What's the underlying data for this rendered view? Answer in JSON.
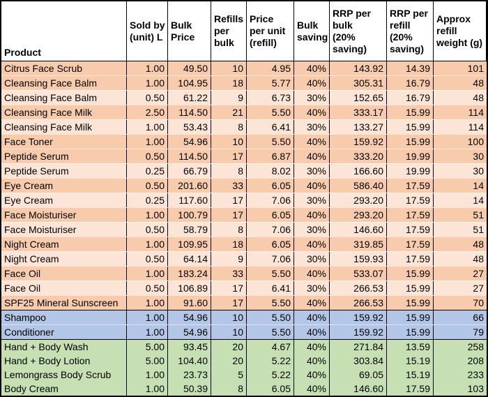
{
  "colors": {
    "border": "#000000",
    "header_bg": "#ffffff",
    "text": "#000000",
    "row_fills": {
      "face_dark": "#F8CBAD",
      "face_light": "#FCE4D6",
      "hair": "#B4C6E7",
      "body": "#C6E0B4"
    }
  },
  "table": {
    "columns": [
      {
        "id": "product",
        "label": "Product",
        "label_lines": [
          "Product"
        ]
      },
      {
        "id": "sold_by",
        "label": "Sold by (unit) L",
        "label_lines": [
          "Sold by",
          "(unit) L"
        ]
      },
      {
        "id": "bulk_price",
        "label": "Bulk Price",
        "label_lines": [
          "Bulk",
          "Price"
        ]
      },
      {
        "id": "refills",
        "label": "Refills per bulk",
        "label_lines": [
          "Refills",
          "per",
          "bulk"
        ]
      },
      {
        "id": "price_per_unit",
        "label": "Price per unit (refill)",
        "label_lines": [
          "Price",
          "per unit",
          "(refill)"
        ]
      },
      {
        "id": "bulk_saving",
        "label": "Bulk saving",
        "label_lines": [
          "Bulk",
          "saving"
        ]
      },
      {
        "id": "rrp_bulk",
        "label": "RRP per bulk (20% saving)",
        "label_lines": [
          "RRP per",
          "bulk",
          "(20%",
          "saving)"
        ]
      },
      {
        "id": "rrp_refill",
        "label": "RRP per refill (20% saving)",
        "label_lines": [
          "RRP per",
          "refill",
          "(20%",
          "saving)"
        ]
      },
      {
        "id": "weight",
        "label": "Approx refill weight (g)",
        "label_lines": [
          "Approx",
          "refill",
          "weight (g)"
        ]
      }
    ],
    "rows": [
      {
        "section": "face",
        "fill": "face_dark",
        "product": "Citrus Face Scrub",
        "sold_by": "1.00",
        "bulk_price": "49.50",
        "refills": "10",
        "price_per_unit": "4.95",
        "bulk_saving": "40%",
        "rrp_bulk": "143.92",
        "rrp_refill": "14.39",
        "weight": "101"
      },
      {
        "section": "face",
        "fill": "face_dark",
        "product": "Cleansing Face Balm",
        "sold_by": "1.00",
        "bulk_price": "104.95",
        "refills": "18",
        "price_per_unit": "5.77",
        "bulk_saving": "40%",
        "rrp_bulk": "305.31",
        "rrp_refill": "16.79",
        "weight": "48"
      },
      {
        "section": "face",
        "fill": "face_light",
        "product": "Cleansing Face Balm",
        "sold_by": "0.50",
        "bulk_price": "61.22",
        "refills": "9",
        "price_per_unit": "6.73",
        "bulk_saving": "30%",
        "rrp_bulk": "152.65",
        "rrp_refill": "16.79",
        "weight": "48"
      },
      {
        "section": "face",
        "fill": "face_dark",
        "product": "Cleansing Face Milk",
        "sold_by": "2.50",
        "bulk_price": "114.50",
        "refills": "21",
        "price_per_unit": "5.50",
        "bulk_saving": "40%",
        "rrp_bulk": "333.17",
        "rrp_refill": "15.99",
        "weight": "114"
      },
      {
        "section": "face",
        "fill": "face_light",
        "product": "Cleansing Face Milk",
        "sold_by": "1.00",
        "bulk_price": "53.43",
        "refills": "8",
        "price_per_unit": "6.41",
        "bulk_saving": "30%",
        "rrp_bulk": "133.27",
        "rrp_refill": "15.99",
        "weight": "114"
      },
      {
        "section": "face",
        "fill": "face_dark",
        "product": "Face Toner",
        "sold_by": "1.00",
        "bulk_price": "54.96",
        "refills": "10",
        "price_per_unit": "5.50",
        "bulk_saving": "40%",
        "rrp_bulk": "159.92",
        "rrp_refill": "15.99",
        "weight": "100"
      },
      {
        "section": "face",
        "fill": "face_dark",
        "product": "Peptide Serum",
        "sold_by": "0.50",
        "bulk_price": "114.50",
        "refills": "17",
        "price_per_unit": "6.87",
        "bulk_saving": "40%",
        "rrp_bulk": "333.20",
        "rrp_refill": "19.99",
        "weight": "30"
      },
      {
        "section": "face",
        "fill": "face_light",
        "product": "Peptide Serum",
        "sold_by": "0.25",
        "bulk_price": "66.79",
        "refills": "8",
        "price_per_unit": "8.02",
        "bulk_saving": "30%",
        "rrp_bulk": "166.60",
        "rrp_refill": "19.99",
        "weight": "30"
      },
      {
        "section": "face",
        "fill": "face_dark",
        "product": "Eye Cream",
        "sold_by": "0.50",
        "bulk_price": "201.60",
        "refills": "33",
        "price_per_unit": "6.05",
        "bulk_saving": "40%",
        "rrp_bulk": "586.40",
        "rrp_refill": "17.59",
        "weight": "14"
      },
      {
        "section": "face",
        "fill": "face_light",
        "product": "Eye Cream",
        "sold_by": "0.25",
        "bulk_price": "117.60",
        "refills": "17",
        "price_per_unit": "7.06",
        "bulk_saving": "30%",
        "rrp_bulk": "293.20",
        "rrp_refill": "17.59",
        "weight": "14"
      },
      {
        "section": "face",
        "fill": "face_dark",
        "product": "Face Moisturiser",
        "sold_by": "1.00",
        "bulk_price": "100.79",
        "refills": "17",
        "price_per_unit": "6.05",
        "bulk_saving": "40%",
        "rrp_bulk": "293.20",
        "rrp_refill": "17.59",
        "weight": "51"
      },
      {
        "section": "face",
        "fill": "face_light",
        "product": "Face Moisturiser",
        "sold_by": "0.50",
        "bulk_price": "58.79",
        "refills": "8",
        "price_per_unit": "7.06",
        "bulk_saving": "30%",
        "rrp_bulk": "146.60",
        "rrp_refill": "17.59",
        "weight": "51"
      },
      {
        "section": "face",
        "fill": "face_dark",
        "product": "Night Cream",
        "sold_by": "1.00",
        "bulk_price": "109.95",
        "refills": "18",
        "price_per_unit": "6.05",
        "bulk_saving": "40%",
        "rrp_bulk": "319.85",
        "rrp_refill": "17.59",
        "weight": "48"
      },
      {
        "section": "face",
        "fill": "face_light",
        "product": "Night Cream",
        "sold_by": "0.50",
        "bulk_price": "64.14",
        "refills": "9",
        "price_per_unit": "7.06",
        "bulk_saving": "30%",
        "rrp_bulk": "159.93",
        "rrp_refill": "17.59",
        "weight": "48"
      },
      {
        "section": "face",
        "fill": "face_dark",
        "product": "Face Oil",
        "sold_by": "1.00",
        "bulk_price": "183.24",
        "refills": "33",
        "price_per_unit": "5.50",
        "bulk_saving": "40%",
        "rrp_bulk": "533.07",
        "rrp_refill": "15.99",
        "weight": "27"
      },
      {
        "section": "face",
        "fill": "face_light",
        "product": "Face Oil",
        "sold_by": "0.50",
        "bulk_price": "106.89",
        "refills": "17",
        "price_per_unit": "6.41",
        "bulk_saving": "30%",
        "rrp_bulk": "266.53",
        "rrp_refill": "15.99",
        "weight": "27"
      },
      {
        "section": "face",
        "fill": "face_dark",
        "product": "SPF25 Mineral Sunscreen",
        "sold_by": "1.00",
        "bulk_price": "91.60",
        "refills": "17",
        "price_per_unit": "5.50",
        "bulk_saving": "40%",
        "rrp_bulk": "266.53",
        "rrp_refill": "15.99",
        "weight": "70"
      },
      {
        "section": "hair",
        "fill": "hair",
        "product": "Shampoo",
        "sold_by": "1.00",
        "bulk_price": "54.96",
        "refills": "10",
        "price_per_unit": "5.50",
        "bulk_saving": "40%",
        "rrp_bulk": "159.92",
        "rrp_refill": "15.99",
        "weight": "66"
      },
      {
        "section": "hair",
        "fill": "hair",
        "product": "Conditioner",
        "sold_by": "1.00",
        "bulk_price": "54.96",
        "refills": "10",
        "price_per_unit": "5.50",
        "bulk_saving": "40%",
        "rrp_bulk": "159.92",
        "rrp_refill": "15.99",
        "weight": "79"
      },
      {
        "section": "body",
        "fill": "body",
        "product": "Hand + Body Wash",
        "sold_by": "5.00",
        "bulk_price": "93.45",
        "refills": "20",
        "price_per_unit": "4.67",
        "bulk_saving": "40%",
        "rrp_bulk": "271.84",
        "rrp_refill": "13.59",
        "weight": "258"
      },
      {
        "section": "body",
        "fill": "body",
        "product": "Hand + Body Lotion",
        "sold_by": "5.00",
        "bulk_price": "104.40",
        "refills": "20",
        "price_per_unit": "5.22",
        "bulk_saving": "40%",
        "rrp_bulk": "303.84",
        "rrp_refill": "15.19",
        "weight": "208"
      },
      {
        "section": "body",
        "fill": "body",
        "product": "Lemongrass Body Scrub",
        "sold_by": "1.00",
        "bulk_price": "23.73",
        "refills": "5",
        "price_per_unit": "5.22",
        "bulk_saving": "40%",
        "rrp_bulk": "69.05",
        "rrp_refill": "15.19",
        "weight": "233"
      },
      {
        "section": "body",
        "fill": "body",
        "product": "Body Cream",
        "sold_by": "1.00",
        "bulk_price": "50.39",
        "refills": "8",
        "price_per_unit": "6.05",
        "bulk_saving": "40%",
        "rrp_bulk": "146.60",
        "rrp_refill": "17.59",
        "weight": "103"
      }
    ]
  }
}
